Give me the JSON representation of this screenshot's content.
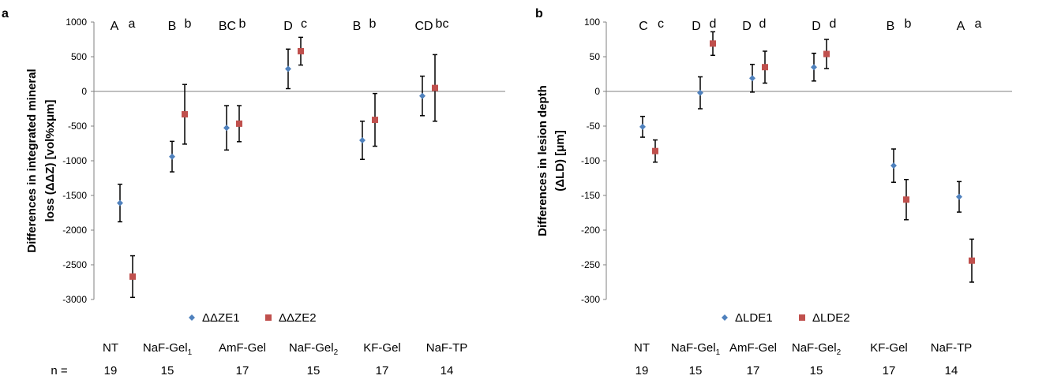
{
  "figure": {
    "groups": [
      {
        "name": "NT",
        "sub": "",
        "n": "19"
      },
      {
        "name": "NaF-Gel",
        "sub": "1",
        "n": "15"
      },
      {
        "name": "AmF-Gel",
        "sub": "",
        "n": "17"
      },
      {
        "name": "NaF-Gel",
        "sub": "2",
        "n": "15"
      },
      {
        "name": "KF-Gel",
        "sub": "",
        "n": "17"
      },
      {
        "name": "NaF-TP",
        "sub": "",
        "n": "14"
      }
    ],
    "n_label": "n ="
  },
  "chart_data": [
    {
      "type": "scatter",
      "panel_label": "a",
      "title": "",
      "xlabel": "",
      "ylabel_lines": [
        "Differences in integrated mineral",
        "loss (ΔΔZ) [vol%xμm]"
      ],
      "ylim": [
        -3000,
        1000
      ],
      "yticks": [
        1000,
        500,
        0,
        -500,
        -1000,
        -1500,
        -2000,
        -2500,
        -3000
      ],
      "categories": [
        "NT",
        "NaF-Gel1",
        "AmF-Gel",
        "NaF-Gel2",
        "KF-Gel",
        "NaF-TP"
      ],
      "series": [
        {
          "name": "ΔΔZE1",
          "color": "#4f81bd",
          "marker": "diamond",
          "values": [
            -1610,
            -940,
            -525,
            325,
            -705,
            -65
          ],
          "errors": [
            270,
            220,
            320,
            285,
            275,
            285
          ]
        },
        {
          "name": "ΔΔZE2",
          "color": "#c0504d",
          "marker": "square",
          "values": [
            -2670,
            -330,
            -465,
            580,
            -410,
            50
          ],
          "errors": [
            300,
            430,
            260,
            200,
            380,
            480
          ]
        }
      ],
      "significance": [
        {
          "upper": "A",
          "lower": "a"
        },
        {
          "upper": "B",
          "lower": "b"
        },
        {
          "upper": "BC",
          "lower": "b"
        },
        {
          "upper": "D",
          "lower": "c"
        },
        {
          "upper": "B",
          "lower": "b"
        },
        {
          "upper": "CD",
          "lower": "bc"
        }
      ],
      "legend_position": "bottom-center"
    },
    {
      "type": "scatter",
      "panel_label": "b",
      "title": "",
      "xlabel": "",
      "ylabel_lines": [
        "Differences in lesion depth",
        "(ΔLD) [μm]"
      ],
      "ylim": [
        -300,
        100
      ],
      "yticks": [
        100,
        50,
        0,
        -50,
        -100,
        -150,
        -200,
        -250,
        -300
      ],
      "categories": [
        "NT",
        "NaF-Gel1",
        "AmF-Gel",
        "NaF-Gel2",
        "KF-Gel",
        "NaF-TP"
      ],
      "series": [
        {
          "name": "ΔLDE1",
          "color": "#4f81bd",
          "marker": "diamond",
          "values": [
            -51,
            -2,
            19,
            35,
            -107,
            -152
          ],
          "errors": [
            15,
            23,
            20,
            20,
            24,
            22
          ]
        },
        {
          "name": "ΔLDE2",
          "color": "#c0504d",
          "marker": "square",
          "values": [
            -86,
            69,
            35,
            54,
            -156,
            -244
          ],
          "errors": [
            16,
            17,
            23,
            21,
            29,
            31
          ]
        }
      ],
      "significance": [
        {
          "upper": "C",
          "lower": "c"
        },
        {
          "upper": "D",
          "lower": "d"
        },
        {
          "upper": "D",
          "lower": "d"
        },
        {
          "upper": "D",
          "lower": "d"
        },
        {
          "upper": "B",
          "lower": "b"
        },
        {
          "upper": "A",
          "lower": "a"
        }
      ],
      "legend_position": "bottom-center"
    }
  ]
}
